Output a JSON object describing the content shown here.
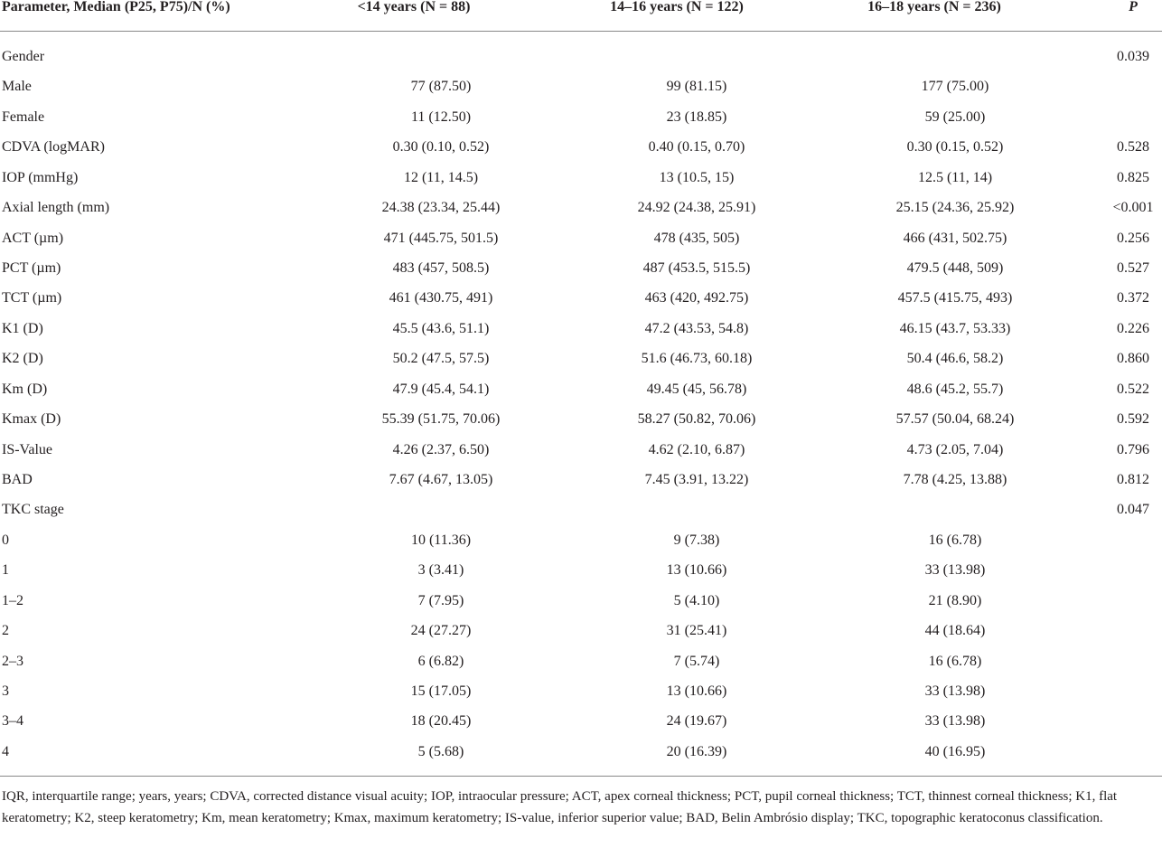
{
  "table": {
    "header": [
      "Parameter, Median (P25, P75)/N (%)",
      "<14 years (N = 88)",
      "14–16 years (N = 122)",
      "16–18 years (N = 236)",
      "P"
    ],
    "rows": [
      [
        "Gender",
        null,
        null,
        null,
        "0.039"
      ],
      [
        "Male",
        "77 (87.50)",
        "99 (81.15)",
        "177 (75.00)",
        null
      ],
      [
        "Female",
        "11 (12.50)",
        "23 (18.85)",
        "59 (25.00)",
        null
      ],
      [
        "CDVA (logMAR)",
        "0.30 (0.10, 0.52)",
        "0.40 (0.15, 0.70)",
        "0.30 (0.15, 0.52)",
        "0.528"
      ],
      [
        "IOP (mmHg)",
        "12 (11, 14.5)",
        "13 (10.5, 15)",
        "12.5 (11, 14)",
        "0.825"
      ],
      [
        "Axial length (mm)",
        "24.38 (23.34, 25.44)",
        "24.92 (24.38, 25.91)",
        "25.15 (24.36, 25.92)",
        "<0.001"
      ],
      [
        "ACT (µm)",
        "471 (445.75, 501.5)",
        "478 (435, 505)",
        "466 (431, 502.75)",
        "0.256"
      ],
      [
        "PCT (µm)",
        "483 (457, 508.5)",
        "487 (453.5, 515.5)",
        "479.5 (448, 509)",
        "0.527"
      ],
      [
        "TCT (µm)",
        "461 (430.75, 491)",
        "463 (420, 492.75)",
        "457.5 (415.75, 493)",
        "0.372"
      ],
      [
        "K1 (D)",
        "45.5 (43.6, 51.1)",
        "47.2 (43.53, 54.8)",
        "46.15 (43.7, 53.33)",
        "0.226"
      ],
      [
        "K2 (D)",
        "50.2 (47.5, 57.5)",
        "51.6 (46.73, 60.18)",
        "50.4 (46.6, 58.2)",
        "0.860"
      ],
      [
        "Km (D)",
        "47.9 (45.4, 54.1)",
        "49.45 (45, 56.78)",
        "48.6 (45.2, 55.7)",
        "0.522"
      ],
      [
        "Kmax (D)",
        "55.39 (51.75, 70.06)",
        "58.27 (50.82, 70.06)",
        "57.57 (50.04, 68.24)",
        "0.592"
      ],
      [
        "IS-Value",
        "4.26 (2.37, 6.50)",
        "4.62 (2.10, 6.87)",
        "4.73 (2.05, 7.04)",
        "0.796"
      ],
      [
        "BAD",
        "7.67 (4.67, 13.05)",
        "7.45 (3.91, 13.22)",
        "7.78 (4.25, 13.88)",
        "0.812"
      ],
      [
        "TKC stage",
        null,
        null,
        null,
        "0.047"
      ],
      [
        "0",
        "10 (11.36)",
        "9 (7.38)",
        "16 (6.78)",
        null
      ],
      [
        "1",
        "3 (3.41)",
        "13 (10.66)",
        "33 (13.98)",
        null
      ],
      [
        "1–2",
        "7 (7.95)",
        "5 (4.10)",
        "21 (8.90)",
        null
      ],
      [
        "2",
        "24 (27.27)",
        "31 (25.41)",
        "44 (18.64)",
        null
      ],
      [
        "2–3",
        "6 (6.82)",
        "7 (5.74)",
        "16 (6.78)",
        null
      ],
      [
        "3",
        "15 (17.05)",
        "13 (10.66)",
        "33 (13.98)",
        null
      ],
      [
        "3–4",
        "18 (20.45)",
        "24 (19.67)",
        "33 (13.98)",
        null
      ],
      [
        "4",
        "5 (5.68)",
        "20 (16.39)",
        "40 (16.95)",
        null
      ]
    ],
    "footnote": "IQR, interquartile range; years, years; CDVA, corrected distance visual acuity; IOP, intraocular pressure; ACT, apex corneal thickness; PCT, pupil corneal thickness; TCT, thinnest corneal thickness; K1, flat keratometry; K2, steep keratometry; Km, mean keratometry; Kmax, maximum keratometry; IS-value, inferior superior value; BAD, Belin Ambrósio display; TKC, topographic keratoconus classification."
  }
}
